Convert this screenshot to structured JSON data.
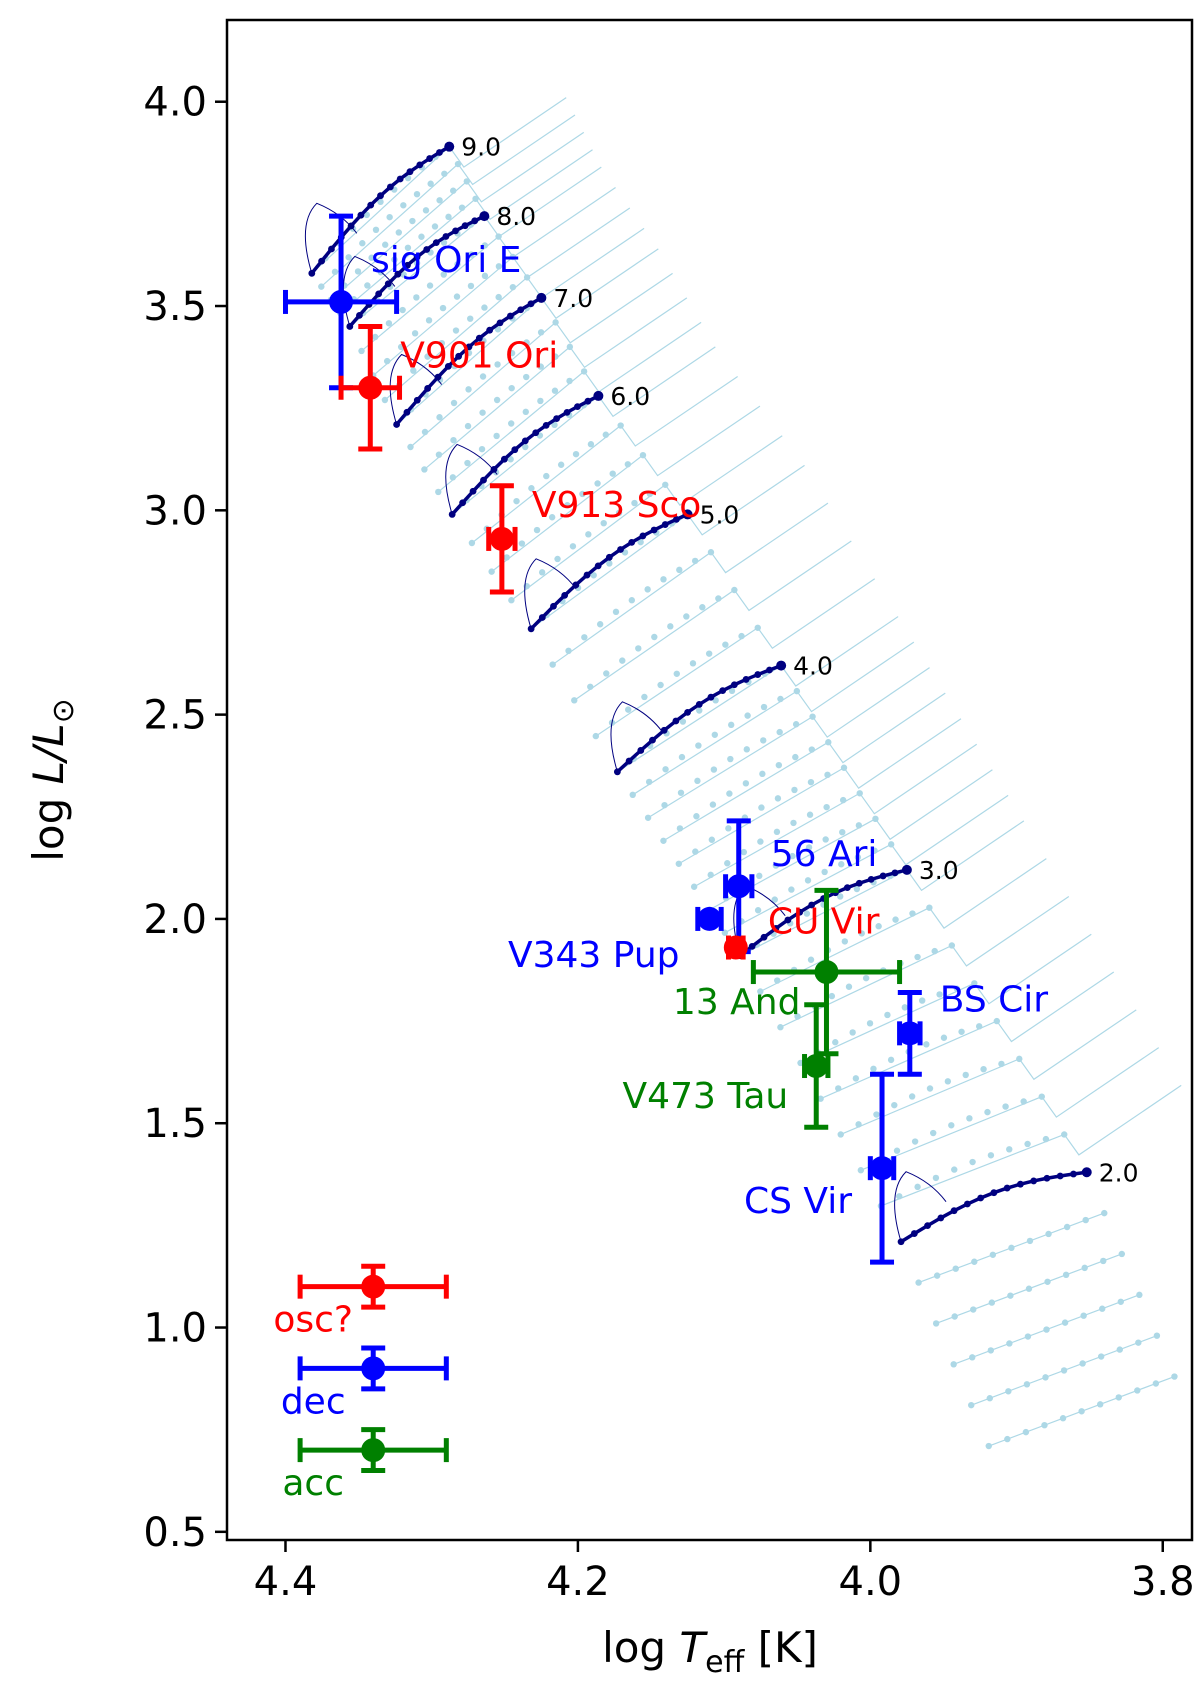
{
  "chart_data": {
    "type": "scatter",
    "title": "",
    "xlabel_text": "log",
    "xlabel_var": "T",
    "xlabel_sub": "eff",
    "xlabel_unit": "[K]",
    "ylabel_text": "log",
    "ylabel_var": "L/L",
    "ylabel_sub": "⊙",
    "xlim": [
      4.44,
      3.78
    ],
    "ylim": [
      0.48,
      4.2
    ],
    "xticks": [
      {
        "v": 4.4,
        "label": "4.4"
      },
      {
        "v": 4.2,
        "label": "4.2"
      },
      {
        "v": 4.0,
        "label": "4.0"
      },
      {
        "v": 3.8,
        "label": "3.8"
      }
    ],
    "yticks": [
      {
        "v": 0.5,
        "label": "0.5"
      },
      {
        "v": 1.0,
        "label": "1.0"
      },
      {
        "v": 1.5,
        "label": "1.5"
      },
      {
        "v": 2.0,
        "label": "2.0"
      },
      {
        "v": 2.5,
        "label": "2.5"
      },
      {
        "v": 3.0,
        "label": "3.0"
      },
      {
        "v": 3.5,
        "label": "3.5"
      },
      {
        "v": 4.0,
        "label": "4.0"
      }
    ],
    "colors": {
      "acc": "#008000",
      "dec": "#0000ff",
      "osc": "#ff0000",
      "track": "#000080",
      "grid_tracks": "#add8e6"
    },
    "mass_tracks": [
      {
        "label": "9.0",
        "start": [
          4.382,
          3.58
        ],
        "end": [
          4.288,
          3.89
        ]
      },
      {
        "label": "8.0",
        "start": [
          4.356,
          3.45
        ],
        "end": [
          4.264,
          3.72
        ]
      },
      {
        "label": "7.0",
        "start": [
          4.324,
          3.21
        ],
        "end": [
          4.225,
          3.52
        ]
      },
      {
        "label": "6.0",
        "start": [
          4.286,
          2.99
        ],
        "end": [
          4.186,
          3.28
        ]
      },
      {
        "label": "5.0",
        "start": [
          4.232,
          2.71
        ],
        "end": [
          4.125,
          2.99
        ]
      },
      {
        "label": "4.0",
        "start": [
          4.173,
          2.36
        ],
        "end": [
          4.061,
          2.62
        ]
      },
      {
        "label": "3.0",
        "start": [
          4.089,
          1.91
        ],
        "end": [
          3.975,
          2.12
        ]
      },
      {
        "label": "2.0",
        "start": [
          3.979,
          1.21
        ],
        "end": [
          3.852,
          1.38
        ]
      }
    ],
    "stars": [
      {
        "name": "sig Ori E",
        "class": "dec",
        "x": 4.362,
        "y": 3.51,
        "xerr": 0.038,
        "yerr": 0.21
      },
      {
        "name": "V901 Ori",
        "class": "osc",
        "x": 4.342,
        "y": 3.3,
        "xerr": 0.02,
        "yerr": 0.15
      },
      {
        "name": "V913 Sco",
        "class": "osc",
        "x": 4.252,
        "y": 2.93,
        "xerr": 0.009,
        "yerr": 0.13
      },
      {
        "name": "56 Ari",
        "class": "dec",
        "x": 4.09,
        "y": 2.08,
        "xerr": 0.009,
        "yerr": 0.16
      },
      {
        "name": "V343 Pup",
        "class": "dec",
        "x": 4.11,
        "y": 2.0,
        "xerr": 0.008,
        "yerr": 0.0
      },
      {
        "name": "CU Vir",
        "class": "osc",
        "x": 4.092,
        "y": 1.93,
        "xerr": 0.005,
        "yerr": 0.0
      },
      {
        "name": "13 And",
        "class": "acc",
        "x": 4.03,
        "y": 1.87,
        "xerr": 0.05,
        "yerr": 0.2
      },
      {
        "name": "V473 Tau",
        "class": "acc",
        "x": 4.037,
        "y": 1.64,
        "xerr": 0.008,
        "yerr": 0.15
      },
      {
        "name": "BS Cir",
        "class": "dec",
        "x": 3.973,
        "y": 1.72,
        "xerr": 0.007,
        "yerr": 0.1
      },
      {
        "name": "CS Vir",
        "class": "dec",
        "x": 3.992,
        "y": 1.39,
        "xerr": 0.008,
        "yerr": 0.23
      }
    ],
    "legend": [
      {
        "label": "osc?",
        "class": "osc",
        "x": 4.34,
        "y": 1.1,
        "xerr": 0.05,
        "yerr": 0.05
      },
      {
        "label": "dec",
        "class": "dec",
        "x": 4.34,
        "y": 0.9,
        "xerr": 0.05,
        "yerr": 0.05
      },
      {
        "label": "acc",
        "class": "acc",
        "x": 4.34,
        "y": 0.7,
        "xerr": 0.05,
        "yerr": 0.05
      }
    ]
  }
}
